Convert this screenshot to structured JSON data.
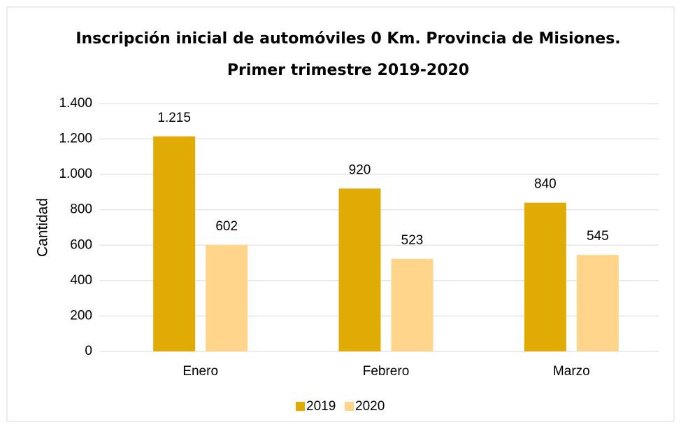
{
  "chart_data": {
    "type": "bar",
    "title": "Inscripción inicial de automóviles 0 Km. Provincia de Misiones.",
    "subtitle": "Primer trimestre 2019-2020",
    "y_label": "Cantidad",
    "categories": [
      "Enero",
      "Febrero",
      "Marzo"
    ],
    "series": [
      {
        "name": "2019",
        "color": "#e1ab06",
        "values": [
          1215,
          920,
          840
        ],
        "value_labels": [
          "1.215",
          "920",
          "840"
        ]
      },
      {
        "name": "2020",
        "color": "#fed58b",
        "values": [
          602,
          523,
          545
        ],
        "value_labels": [
          "602",
          "523",
          "545"
        ]
      }
    ],
    "ylim": [
      0,
      1400
    ],
    "yticks": [
      0,
      200,
      400,
      600,
      800,
      {
        "value": 1000,
        "label": "1.000"
      },
      {
        "value": 1200,
        "label": "1.200"
      },
      {
        "value": 1400,
        "label": "1.400"
      }
    ],
    "grid": true,
    "legend": "bottom"
  }
}
